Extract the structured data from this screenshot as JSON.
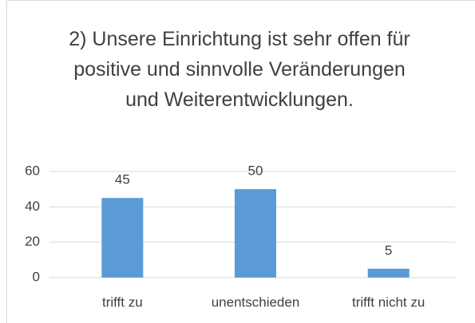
{
  "chart_data": {
    "type": "bar",
    "title": "2) Unsere Einrichtung ist sehr offen für positive und sinnvolle Veränderungen und Weiterentwicklungen.",
    "categories": [
      "trifft zu",
      "unentschieden",
      "trifft nicht zu"
    ],
    "values": [
      45,
      50,
      5
    ],
    "color": "#5b9bd5",
    "ylim": [
      0,
      60
    ],
    "yticks": [
      0,
      20,
      40,
      60
    ],
    "grid": true
  }
}
